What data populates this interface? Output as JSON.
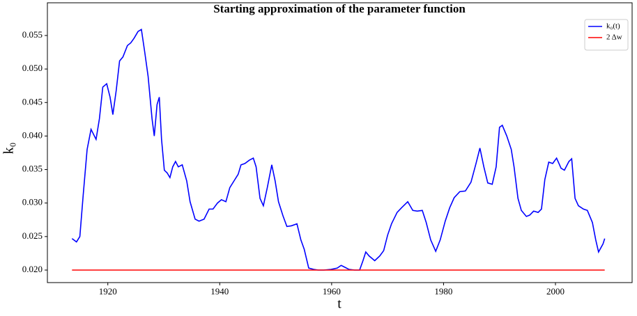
{
  "chart_data": {
    "type": "line",
    "title": "Starting approximation of the parameter function",
    "xlabel": "t",
    "ylabel": "k₀",
    "xlim": [
      1909.2,
      2013.7
    ],
    "ylim": [
      0.01813,
      0.05988
    ],
    "xticks": [
      1920,
      1940,
      1960,
      1980,
      2000
    ],
    "yticks": [
      {
        "value": 0.02,
        "label": "0.020"
      },
      0.025,
      {
        "value": 0.03,
        "label": "0.030"
      },
      0.035,
      {
        "value": 0.04,
        "label": "0.040"
      },
      0.045,
      {
        "value": 0.05,
        "label": "0.050"
      },
      0.055
    ],
    "legend": "upper right",
    "series": [
      {
        "name": "k₀(t)",
        "color": "#0000ff",
        "x": [
          1913.6,
          1914.4,
          1915.0,
          1915.6,
          1916.3,
          1917.0,
          1917.9,
          1918.5,
          1919.1,
          1919.8,
          1920.4,
          1920.9,
          1921.5,
          1922.1,
          1922.7,
          1923.5,
          1924.1,
          1924.7,
          1925.4,
          1926.0,
          1926.6,
          1927.2,
          1927.9,
          1928.3,
          1928.8,
          1929.2,
          1929.6,
          1930.1,
          1930.6,
          1931.1,
          1931.6,
          1932.1,
          1932.6,
          1933.3,
          1934.1,
          1934.7,
          1935.6,
          1936.3,
          1937.2,
          1938.1,
          1938.8,
          1939.6,
          1940.3,
          1941.1,
          1941.8,
          1942.7,
          1943.3,
          1943.8,
          1944.5,
          1945.3,
          1946.0,
          1946.5,
          1947.2,
          1947.8,
          1948.5,
          1949.3,
          1949.9,
          1950.5,
          1951.3,
          1952.0,
          1952.8,
          1953.8,
          1954.5,
          1955.1,
          1955.9,
          1956.8,
          1957.6,
          1958.6,
          1959.9,
          1961.0,
          1961.7,
          1962.4,
          1963.1,
          1964.1,
          1965.0,
          1965.6,
          1966.1,
          1966.7,
          1967.7,
          1968.6,
          1969.3,
          1970.0,
          1970.7,
          1971.7,
          1972.5,
          1973.6,
          1974.5,
          1975.3,
          1976.2,
          1976.9,
          1977.7,
          1978.6,
          1979.4,
          1980.3,
          1981.1,
          1981.9,
          1982.9,
          1983.9,
          1984.9,
          1985.8,
          1986.5,
          1987.2,
          1987.9,
          1988.7,
          1989.4,
          1990.0,
          1990.5,
          1991.3,
          1992.1,
          1992.6,
          1993.3,
          1993.9,
          1994.8,
          1995.4,
          1996.1,
          1996.9,
          1997.5,
          1998.1,
          1998.8,
          1999.5,
          2000.2,
          2001.0,
          2001.6,
          2002.4,
          2002.9,
          2003.5,
          2004.1,
          2005.0,
          2005.7,
          2006.6,
          2007.2,
          2007.7,
          2008.5,
          2008.8
        ],
        "values": [
          0.0247,
          0.0242,
          0.025,
          0.0312,
          0.038,
          0.041,
          0.0395,
          0.0426,
          0.0473,
          0.0478,
          0.0458,
          0.0432,
          0.0468,
          0.0512,
          0.0518,
          0.0535,
          0.0539,
          0.0546,
          0.0556,
          0.0559,
          0.0525,
          0.0489,
          0.0426,
          0.04,
          0.0447,
          0.0458,
          0.0395,
          0.0349,
          0.0345,
          0.0338,
          0.0354,
          0.0362,
          0.0354,
          0.0357,
          0.0333,
          0.0302,
          0.0276,
          0.0273,
          0.0276,
          0.0291,
          0.0291,
          0.03,
          0.0305,
          0.0302,
          0.0323,
          0.0335,
          0.0343,
          0.0357,
          0.0359,
          0.0364,
          0.0367,
          0.0354,
          0.0307,
          0.0296,
          0.0323,
          0.0357,
          0.0333,
          0.0302,
          0.0281,
          0.0265,
          0.0266,
          0.0269,
          0.0245,
          0.0231,
          0.0203,
          0.0201,
          0.02,
          0.02,
          0.0201,
          0.0203,
          0.0207,
          0.0204,
          0.0201,
          0.02,
          0.02,
          0.0214,
          0.0227,
          0.0221,
          0.0214,
          0.0221,
          0.0229,
          0.0252,
          0.0269,
          0.0286,
          0.0293,
          0.0302,
          0.0289,
          0.0288,
          0.0289,
          0.0271,
          0.0245,
          0.0228,
          0.0245,
          0.0273,
          0.0293,
          0.0308,
          0.0317,
          0.0318,
          0.0331,
          0.0359,
          0.0382,
          0.0354,
          0.033,
          0.0328,
          0.0354,
          0.0413,
          0.0416,
          0.04,
          0.038,
          0.0354,
          0.0307,
          0.0289,
          0.028,
          0.0282,
          0.0288,
          0.0286,
          0.0291,
          0.0335,
          0.0361,
          0.0359,
          0.0367,
          0.0352,
          0.0349,
          0.0362,
          0.0366,
          0.0307,
          0.0296,
          0.0291,
          0.0289,
          0.0271,
          0.0245,
          0.0227,
          0.0239,
          0.0247
        ]
      },
      {
        "name": "2 Δw",
        "color": "#ff0000",
        "x": [
          1913.6,
          2008.8
        ],
        "values": [
          0.02,
          0.02
        ]
      }
    ]
  }
}
